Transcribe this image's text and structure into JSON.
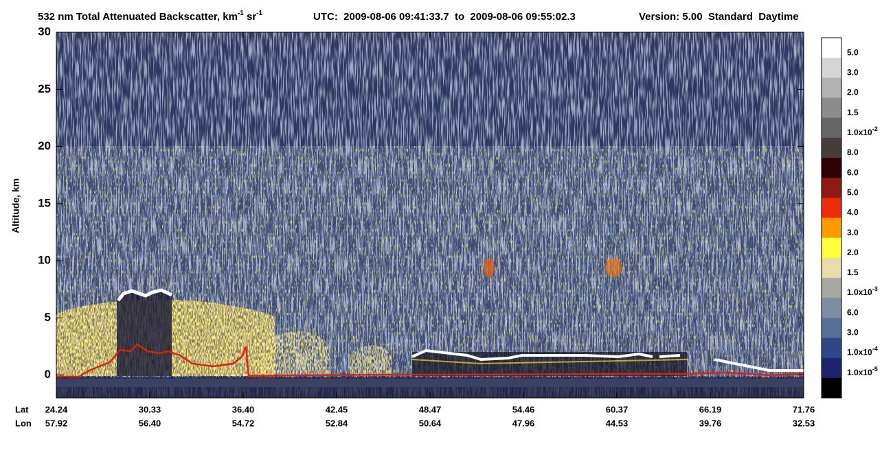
{
  "chart_data": {
    "type": "heatmap",
    "title": [
      "532 nm Total Attenuated Backscatter, km",
      "-1",
      " sr",
      "-1"
    ],
    "time_range": "UTC:  2009-08-06 09:41:33.7  to  2009-08-06 09:55:02.3",
    "version": "Version: 5.00  Standard  Daytime",
    "y_label": "Altitude, km",
    "ylim": [
      -2,
      30
    ],
    "yticks": [
      0,
      5,
      10,
      15,
      20,
      25,
      30
    ],
    "x_rows": [
      {
        "name": "Lat",
        "categories": [
          "24.24",
          "30.33",
          "36.40",
          "42.45",
          "48.47",
          "54.46",
          "60.37",
          "66.19",
          "71.76"
        ]
      },
      {
        "name": "Lon",
        "categories": [
          "57.92",
          "56.40",
          "54.72",
          "52.84",
          "50.64",
          "47.96",
          "44.53",
          "39.76",
          "32.53"
        ]
      }
    ],
    "colorbar": {
      "colors": [
        "#ffffff",
        "#d6d6d6",
        "#b2b2b2",
        "#8c8c8c",
        "#666666",
        "#463c3a",
        "#2e0303",
        "#8c1a12",
        "#ec2c0c",
        "#ff9a00",
        "#ffff3c",
        "#eadcaa",
        "#a8aaa2",
        "#7e8ea0",
        "#56709a",
        "#2f4788",
        "#1e216c",
        "#000000"
      ],
      "labels": [
        "5.0",
        "3.0",
        "2.0",
        "1.5",
        {
          "text": "1.0x10",
          "sup": "-2"
        },
        "8.0",
        "6.0",
        "5.0",
        "4.0",
        "3.0",
        "2.0",
        "1.5",
        {
          "text": "1.0x10",
          "sup": "-3"
        },
        "6.0",
        "3.0",
        {
          "text": "1.0x10",
          "sup": "-4"
        },
        {
          "text": "1.0x10",
          "sup": "-5"
        }
      ]
    }
  }
}
